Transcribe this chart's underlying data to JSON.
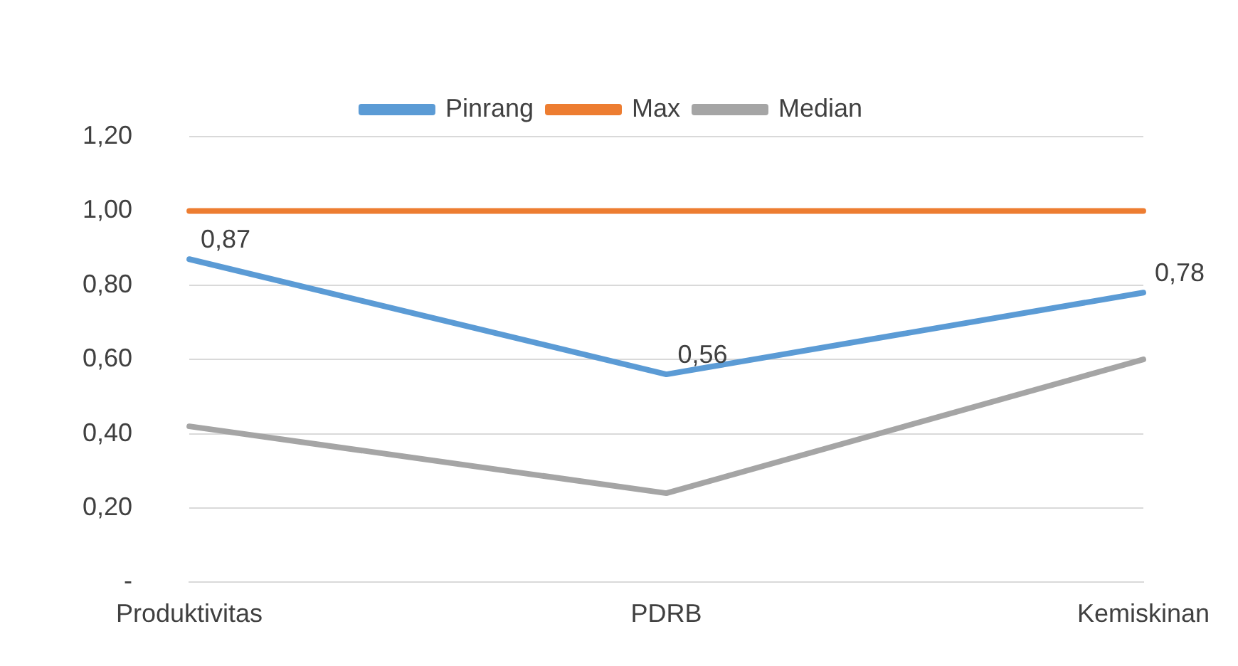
{
  "chart_data": {
    "type": "line",
    "categories": [
      "Produktivitas",
      "PDRB",
      "Kemiskinan"
    ],
    "series": [
      {
        "name": "Pinrang",
        "color": "#5b9bd5",
        "values": [
          0.87,
          0.56,
          0.78
        ],
        "value_labels": [
          "0,87",
          "0,56",
          "0,78"
        ]
      },
      {
        "name": "Max",
        "color": "#ed7d31",
        "values": [
          1,
          1,
          1
        ]
      },
      {
        "name": "Median",
        "color": "#a5a5a5",
        "values": [
          0.42,
          0.24,
          0.6
        ]
      }
    ],
    "ylim": [
      0,
      1.2
    ],
    "yticks": [
      {
        "value": 0,
        "label": "-"
      },
      {
        "value": 0.2,
        "label": "0,20"
      },
      {
        "value": 0.4,
        "label": "0,40"
      },
      {
        "value": 0.6,
        "label": "0,60"
      },
      {
        "value": 0.8,
        "label": "0,80"
      },
      {
        "value": 1,
        "label": "1,00"
      },
      {
        "value": 1.2,
        "label": "1,20"
      }
    ],
    "grid": "y",
    "legend": "top",
    "marker": "none",
    "line_style": "solid"
  }
}
